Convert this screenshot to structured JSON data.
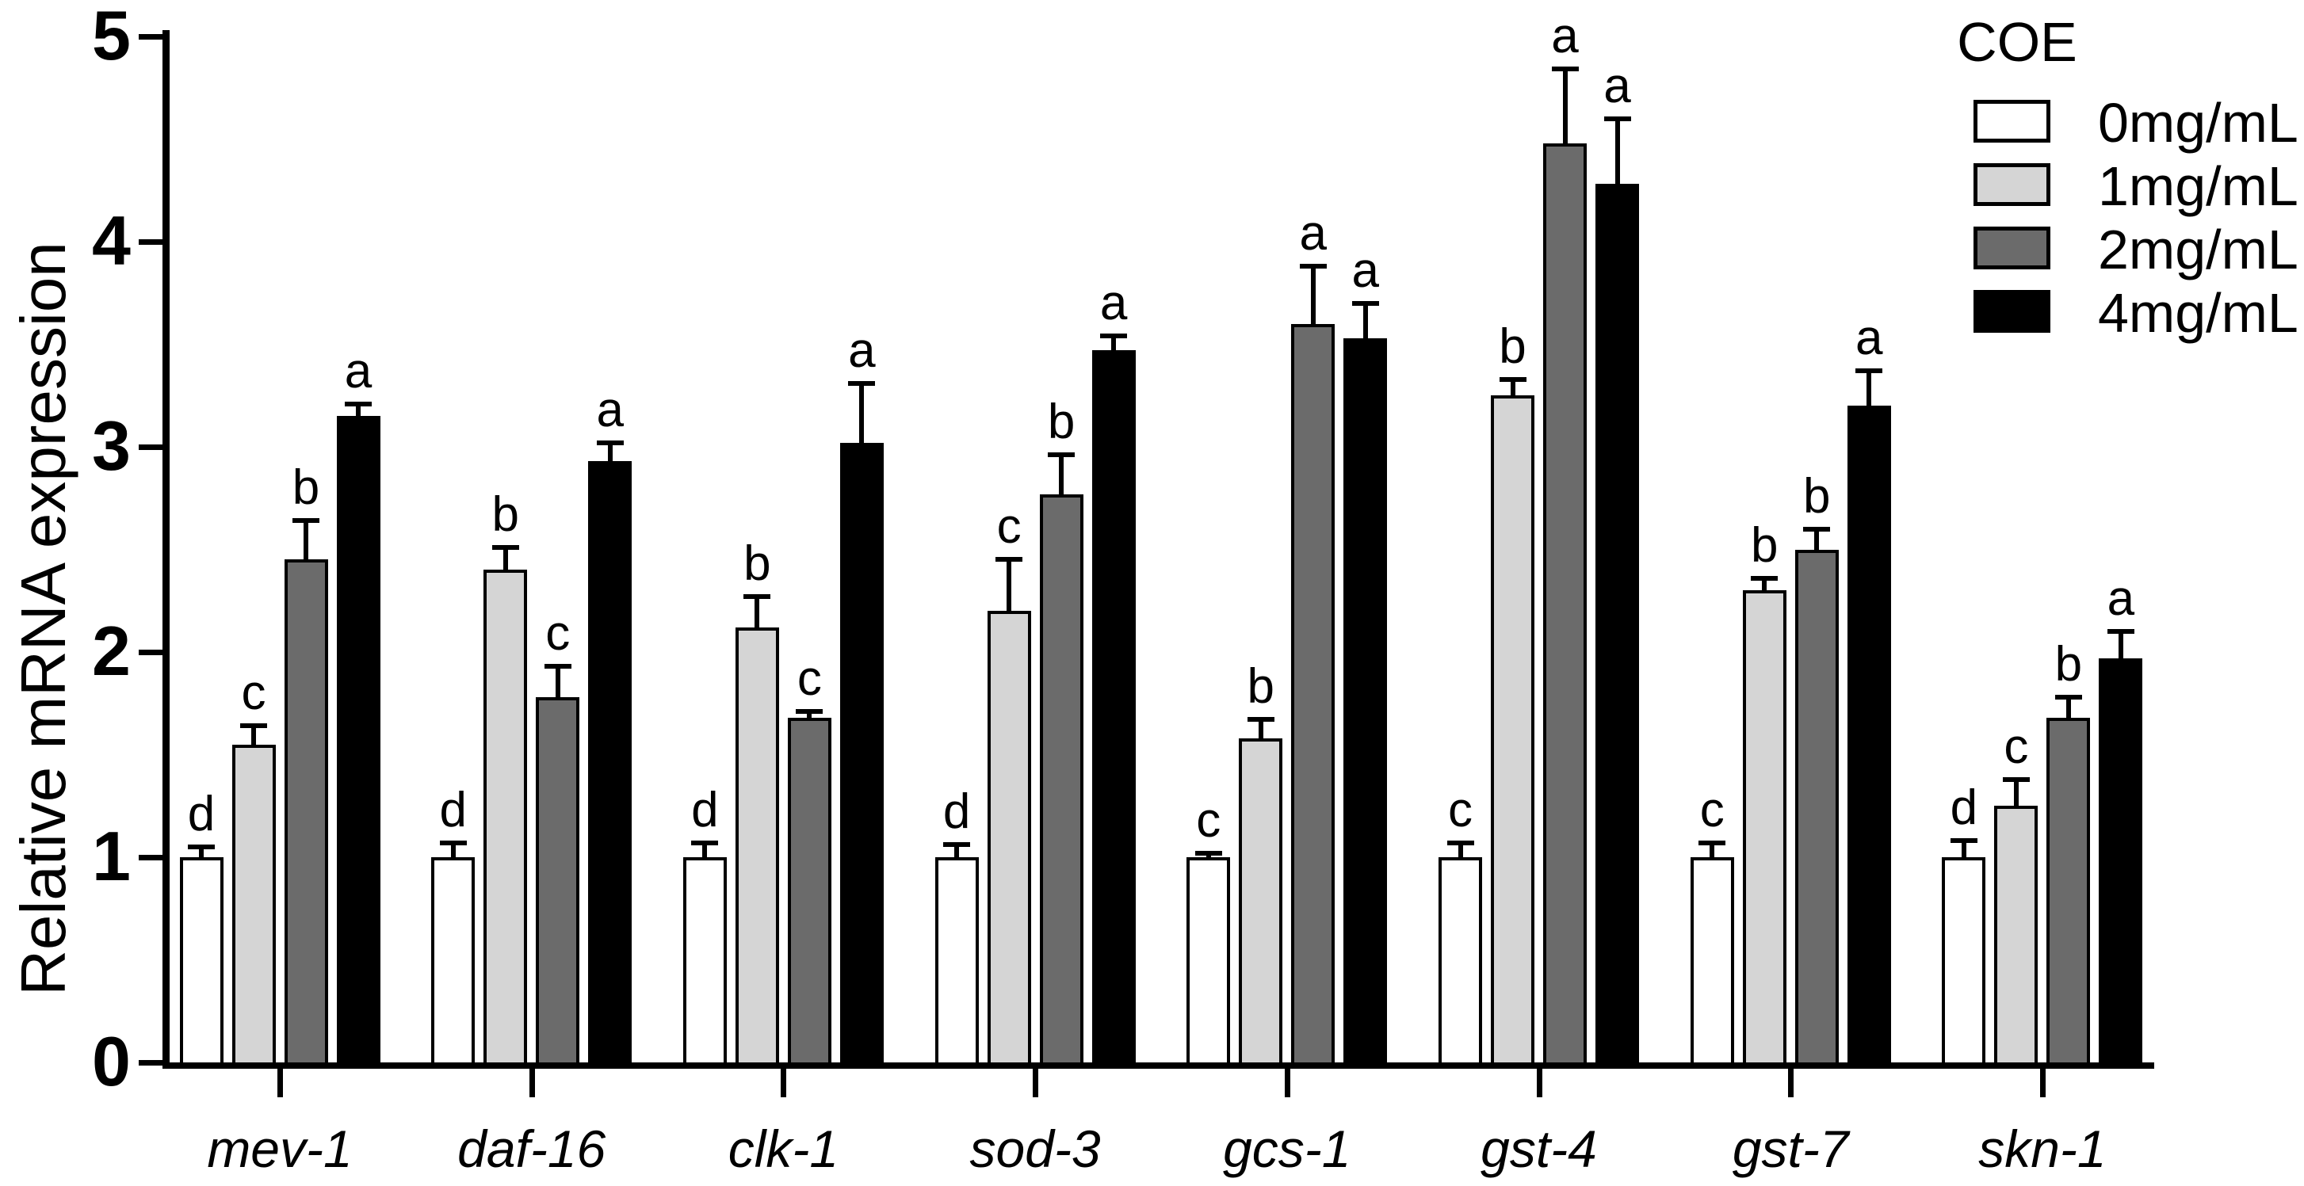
{
  "figure": {
    "background": "#ffffff",
    "y_axis_title": "Relative mRNA expression"
  },
  "legend": {
    "title": "COE",
    "items": [
      {
        "label": "0mg/mL",
        "color": "#ffffff"
      },
      {
        "label": "1mg/mL",
        "color": "#d5d5d5"
      },
      {
        "label": "2mg/mL",
        "color": "#6b6b6b"
      },
      {
        "label": "4mg/mL",
        "color": "#000000"
      }
    ]
  },
  "chart_data": {
    "type": "bar",
    "title": "",
    "xlabel": "",
    "ylabel": "Relative mRNA expression",
    "ylim": [
      0,
      5
    ],
    "yticks": [
      0,
      1,
      2,
      3,
      4,
      5
    ],
    "grid": false,
    "legend_position": "top-right",
    "error_bars": "upper-only",
    "categories": [
      "mev-1",
      "daf-16",
      "clk-1",
      "sod-3",
      "gcs-1",
      "gst-4",
      "gst-7",
      "skn-1"
    ],
    "series": [
      {
        "name": "0mg/mL",
        "color": "#ffffff",
        "values": [
          1.0,
          1.0,
          1.0,
          1.0,
          1.0,
          1.0,
          1.0,
          1.0
        ],
        "errors": [
          0.05,
          0.07,
          0.07,
          0.06,
          0.02,
          0.07,
          0.07,
          0.08
        ],
        "letters": [
          "d",
          "d",
          "d",
          "d",
          "c",
          "c",
          "c",
          "d"
        ]
      },
      {
        "name": "1mg/mL",
        "color": "#d5d5d5",
        "values": [
          1.55,
          2.4,
          2.12,
          2.2,
          1.58,
          3.25,
          2.3,
          1.25
        ],
        "errors": [
          0.09,
          0.11,
          0.15,
          0.25,
          0.09,
          0.08,
          0.06,
          0.13
        ],
        "letters": [
          "c",
          "b",
          "b",
          "c",
          "b",
          "b",
          "b",
          "c"
        ]
      },
      {
        "name": "2mg/mL",
        "color": "#6b6b6b",
        "values": [
          2.45,
          1.78,
          1.68,
          2.77,
          3.6,
          4.48,
          2.5,
          1.68
        ],
        "errors": [
          0.19,
          0.15,
          0.03,
          0.19,
          0.28,
          0.36,
          0.1,
          0.1
        ],
        "letters": [
          "b",
          "c",
          "c",
          "b",
          "a",
          "a",
          "b",
          "b"
        ]
      },
      {
        "name": "4mg/mL",
        "color": "#000000",
        "values": [
          3.15,
          2.93,
          3.02,
          3.47,
          3.53,
          4.28,
          3.2,
          1.97
        ],
        "errors": [
          0.06,
          0.09,
          0.29,
          0.07,
          0.17,
          0.32,
          0.17,
          0.13
        ],
        "letters": [
          "a",
          "a",
          "a",
          "a",
          "a",
          "a",
          "a",
          "a"
        ]
      }
    ]
  }
}
